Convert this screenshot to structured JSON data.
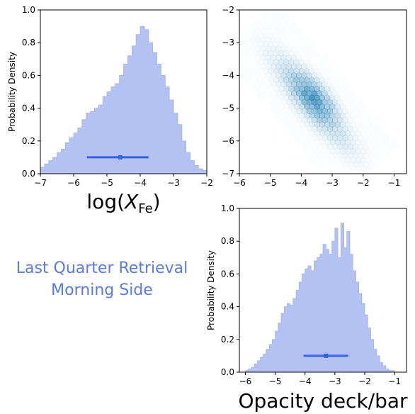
{
  "annotation": {
    "line1": "Last Quarter Retrieval",
    "line2": "Morning Side"
  },
  "colors": {
    "hist_fill": "#b3c2f2",
    "hist_edge": "#a6b4e3",
    "errorbar": "#3a63e0",
    "hex": "#2b8cbe",
    "label": "#5b7be0"
  },
  "chart_data": [
    {
      "type": "bar",
      "panel": "top-left histogram",
      "xlabel": "log(X_Fe)",
      "xlabel_main": "log(",
      "xlabel_var": "X",
      "xlabel_sub": "Fe",
      "xlabel_close": ")",
      "ylabel": "Probability Density",
      "xlim": [
        -7,
        -2
      ],
      "ylim": [
        0,
        1.0
      ],
      "xticks": [
        "−7",
        "−6",
        "−5",
        "−4",
        "−3",
        "−2"
      ],
      "yticks": [
        "0.0",
        "0.2",
        "0.4",
        "0.6",
        "0.8",
        "1.0"
      ],
      "bin_edges_start": -7.0,
      "bin_width": 0.125,
      "values": [
        0.04,
        0.06,
        0.08,
        0.1,
        0.13,
        0.15,
        0.19,
        0.22,
        0.25,
        0.28,
        0.33,
        0.37,
        0.38,
        0.4,
        0.42,
        0.47,
        0.5,
        0.53,
        0.55,
        0.6,
        0.67,
        0.72,
        0.78,
        0.85,
        0.9,
        0.88,
        0.8,
        0.74,
        0.67,
        0.6,
        0.53,
        0.45,
        0.37,
        0.3,
        0.2,
        0.13,
        0.08,
        0.05,
        0.03,
        0.02
      ],
      "errorbar": {
        "median": -4.6,
        "low": -5.6,
        "high": -3.75,
        "y": 0.1
      }
    },
    {
      "type": "heatmap",
      "panel": "top-right joint hexbin",
      "xlim": [
        -6,
        -0.6
      ],
      "ylim": [
        -7,
        -2
      ],
      "xticks": [
        "−6",
        "−5",
        "−4",
        "−3",
        "−2",
        "−1"
      ],
      "yticks": [
        "−2",
        "−3",
        "−4",
        "−5",
        "−6",
        "−7"
      ],
      "trend": {
        "x_from": -5.5,
        "y_from": -2.7,
        "x_to": -1.9,
        "y_to": -6.8,
        "density_peak": [
          -3.3,
          -4.4
        ]
      }
    },
    {
      "type": "bar",
      "panel": "bottom-right histogram",
      "xlabel": "Opacity deck/bar",
      "ylabel": "Probability Density",
      "xlim": [
        -6.2,
        -0.6
      ],
      "ylim": [
        0,
        1.0
      ],
      "xticks": [
        "−6",
        "−5",
        "−4",
        "−3",
        "−2",
        "−1"
      ],
      "yticks": [
        "0.0",
        "0.2",
        "0.4",
        "0.6",
        "0.8",
        "1.0"
      ],
      "bin_edges_start": -6.0,
      "bin_width": 0.1,
      "values": [
        0.01,
        0.02,
        0.03,
        0.05,
        0.07,
        0.09,
        0.11,
        0.14,
        0.17,
        0.2,
        0.25,
        0.3,
        0.36,
        0.4,
        0.42,
        0.41,
        0.45,
        0.5,
        0.55,
        0.6,
        0.63,
        0.65,
        0.62,
        0.68,
        0.7,
        0.72,
        0.78,
        0.75,
        0.72,
        0.8,
        0.88,
        0.7,
        0.91,
        0.76,
        0.86,
        0.72,
        0.62,
        0.55,
        0.48,
        0.42,
        0.35,
        0.27,
        0.2,
        0.14,
        0.1,
        0.06,
        0.04,
        0.02,
        0.01,
        0.01
      ],
      "errorbar": {
        "median": -3.3,
        "low": -4.05,
        "high": -2.55,
        "y": 0.1
      }
    }
  ]
}
